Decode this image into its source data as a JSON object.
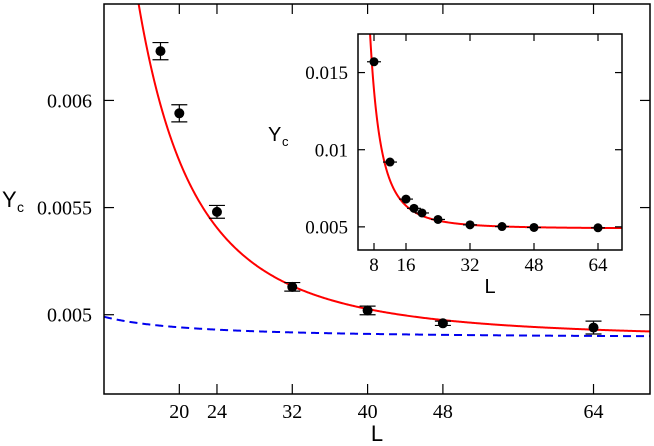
{
  "chart_data": [
    {
      "type": "scatter",
      "xlabel": "L",
      "ylabel_main": "Y",
      "ylabel_sub": "c",
      "xlim": [
        12,
        70
      ],
      "ylim": [
        0.00463,
        0.00645
      ],
      "xticks": [
        20,
        24,
        32,
        40,
        48,
        64
      ],
      "xtick_labels": [
        "20",
        "24",
        "32",
        "40",
        "48",
        "64"
      ],
      "yticks": [
        0.005,
        0.0055,
        0.006
      ],
      "ytick_labels": [
        "0.005",
        "0.0055",
        "0.006"
      ],
      "series": [
        {
          "kind": "points",
          "x": [
            18,
            20,
            24,
            32,
            40,
            48,
            64
          ],
          "y": [
            0.00623,
            0.00594,
            0.00548,
            0.00513,
            0.00502,
            0.00496,
            0.00494
          ],
          "yerr": [
            4e-05,
            4e-05,
            3e-05,
            2e-05,
            2e-05,
            1e-05,
            3e-05
          ],
          "color": "#000000"
        },
        {
          "kind": "fit",
          "color": "#ff0000",
          "style": "solid",
          "model": "a + b*L^(-c)",
          "params": {
            "a": 0.00489,
            "b": 2.0,
            "c": 2.6
          }
        },
        {
          "kind": "fit",
          "color": "#0000ee",
          "style": "dashed",
          "model": "a + b*L^(-c)",
          "params": {
            "a": 0.00489,
            "b": 0.00267,
            "c": 1.32
          }
        }
      ]
    },
    {
      "type": "scatter",
      "inset": true,
      "xlabel": "L",
      "ylabel_main": "Y",
      "ylabel_sub": "c",
      "xlim": [
        4,
        70
      ],
      "ylim": [
        0.0035,
        0.0175
      ],
      "xticks": [
        8,
        16,
        32,
        48,
        64
      ],
      "xtick_labels": [
        "8",
        "16",
        "32",
        "48",
        "64"
      ],
      "yticks": [
        0.005,
        0.01,
        0.015
      ],
      "ytick_labels": [
        "0.005",
        "0.01",
        "0.015"
      ],
      "series": [
        {
          "kind": "points",
          "x": [
            8,
            12,
            16,
            18,
            20,
            24,
            32,
            40,
            48,
            64
          ],
          "y": [
            0.0157,
            0.0092,
            0.0068,
            0.0062,
            0.0059,
            0.00548,
            0.00513,
            0.00502,
            0.00496,
            0.00494
          ],
          "color": "#000000"
        },
        {
          "kind": "fit",
          "color": "#ff0000",
          "style": "solid",
          "model": "a + b*L^(-c)",
          "params": {
            "a": 0.00489,
            "b": 2.0,
            "c": 2.6
          }
        }
      ]
    }
  ]
}
